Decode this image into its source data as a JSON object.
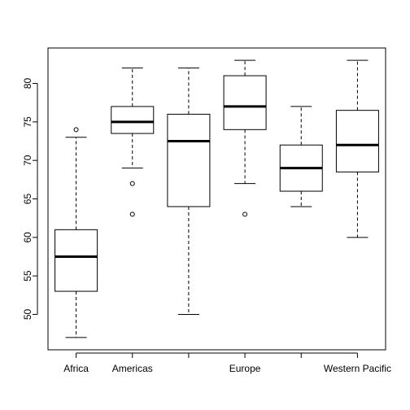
{
  "chart_data": {
    "type": "boxplot",
    "title": "",
    "xlabel": "",
    "ylabel": "",
    "ylim": [
      45.4,
      84.6
    ],
    "yticks": [
      50,
      55,
      60,
      65,
      70,
      75,
      80
    ],
    "category_tick_labels": [
      "Africa",
      "Americas",
      "",
      "Europe",
      "",
      "Western Pacific"
    ],
    "boxes": [
      {
        "whisker_low": 47,
        "q1": 53,
        "median": 57.5,
        "q3": 61,
        "whisker_high": 73,
        "outliers": [
          74
        ]
      },
      {
        "whisker_low": 69,
        "q1": 73.5,
        "median": 75,
        "q3": 77,
        "whisker_high": 82,
        "outliers": [
          67,
          63
        ]
      },
      {
        "whisker_low": 50,
        "q1": 64,
        "median": 72.5,
        "q3": 76,
        "whisker_high": 82,
        "outliers": []
      },
      {
        "whisker_low": 67,
        "q1": 74,
        "median": 77,
        "q3": 81,
        "whisker_high": 83,
        "outliers": [
          63
        ]
      },
      {
        "whisker_low": 64,
        "q1": 66,
        "median": 69,
        "q3": 72,
        "whisker_high": 77,
        "outliers": []
      },
      {
        "whisker_low": 60,
        "q1": 68.5,
        "median": 72,
        "q3": 76.5,
        "whisker_high": 83,
        "outliers": []
      }
    ],
    "grid": false,
    "legend": "none"
  }
}
